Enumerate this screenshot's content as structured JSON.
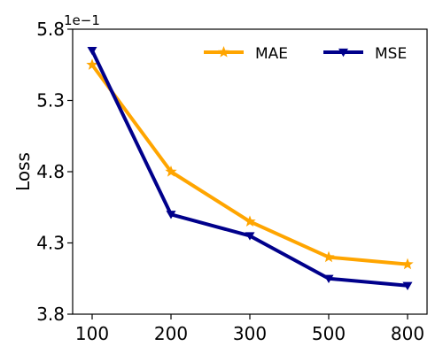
{
  "chart_data": {
    "type": "line",
    "categories": [
      "100",
      "200",
      "300",
      "500",
      "800"
    ],
    "ylabel": "Loss",
    "xlabel": "",
    "y_scale_label": "1e−1",
    "ylim": [
      3.8,
      5.8
    ],
    "y_ticks": [
      "3.8",
      "4.3",
      "4.8",
      "5.3",
      "5.8"
    ],
    "grid": false,
    "legend_position": "top-right",
    "series": [
      {
        "name": "MAE",
        "color": "#FFA500",
        "marker": "star",
        "values": [
          5.55,
          4.8,
          4.45,
          4.2,
          4.15
        ]
      },
      {
        "name": "MSE",
        "color": "#00008B",
        "marker": "triangle-down",
        "values": [
          5.65,
          4.5,
          4.35,
          4.05,
          4.0
        ]
      }
    ]
  }
}
